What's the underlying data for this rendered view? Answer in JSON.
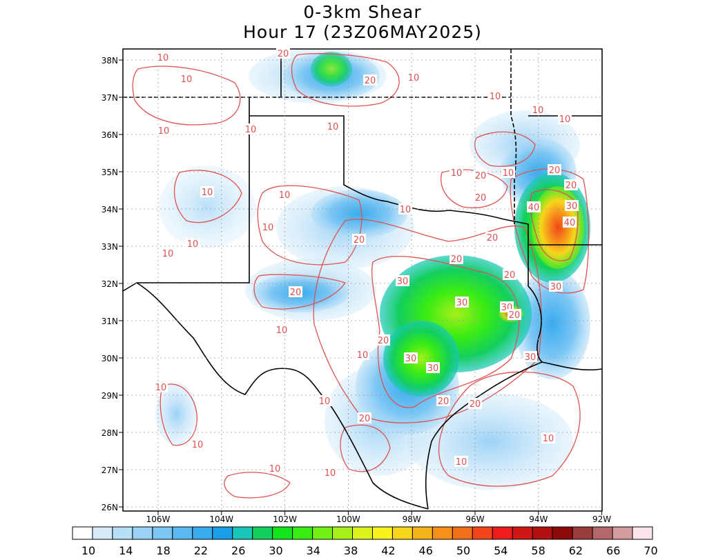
{
  "title": {
    "line1": "0-3km Shear",
    "line2": "Hour 17 (23Z06MAY2025)"
  },
  "map": {
    "lat_labels": [
      "38N",
      "37N",
      "36N",
      "35N",
      "34N",
      "33N",
      "32N",
      "31N",
      "30N",
      "29N",
      "28N",
      "27N",
      "26N"
    ],
    "lon_labels": [
      "106W",
      "104W",
      "102W",
      "100W",
      "98W",
      "96W",
      "94W",
      "92W"
    ],
    "contour_labels": [
      "10",
      "20",
      "30",
      "40"
    ],
    "contour_color": "#e05050"
  },
  "colorbar": {
    "colors": [
      "#ffffff",
      "#d6ecfa",
      "#b8dff8",
      "#9cd2f6",
      "#7cc6f4",
      "#5cb9f1",
      "#39acee",
      "#1a9ee6",
      "#18c7b7",
      "#12cf5d",
      "#14e41c",
      "#38ec14",
      "#72ef17",
      "#a8f01a",
      "#dcf21c",
      "#faf21e",
      "#f8d61c",
      "#f6b41c",
      "#f5901b",
      "#f3701b",
      "#f2461a",
      "#ee1c1c",
      "#d01616",
      "#b01010",
      "#8d0a0a",
      "#9b3c3c",
      "#b5686b",
      "#d59ca0",
      "#fbe4ea"
    ],
    "labels": [
      "10",
      "14",
      "18",
      "22",
      "26",
      "30",
      "34",
      "38",
      "42",
      "46",
      "50",
      "54",
      "58",
      "62",
      "66",
      "70"
    ]
  }
}
